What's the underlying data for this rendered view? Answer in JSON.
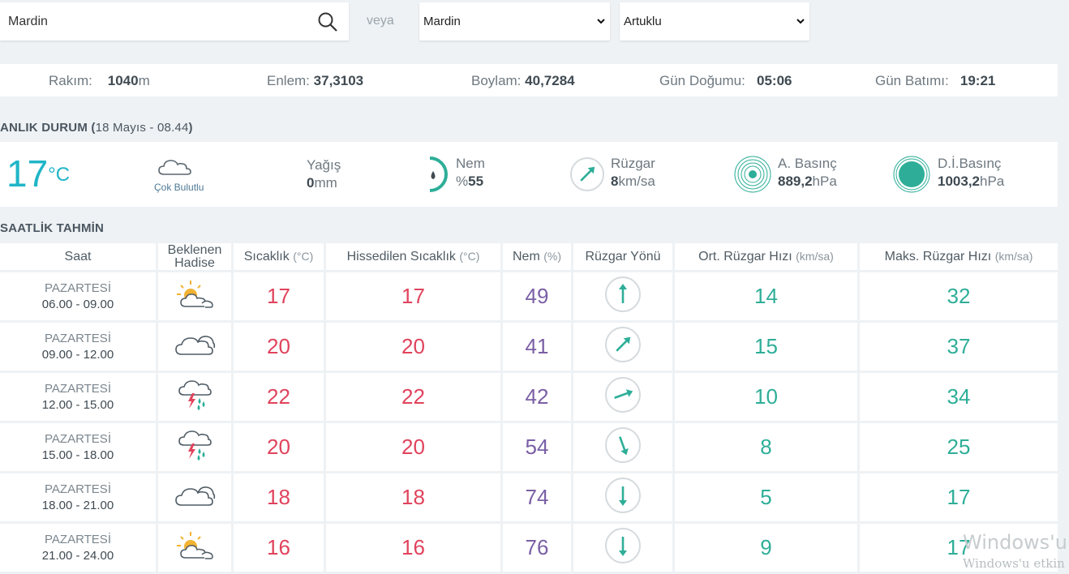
{
  "search": {
    "value": "Mardin",
    "icon": "search-icon"
  },
  "veya": "veya",
  "selects": {
    "province": "Mardin",
    "district": "Artuklu"
  },
  "info": {
    "altitude_label": "Rakım:",
    "altitude_value": "1040",
    "altitude_unit": "m",
    "lat_label": "Enlem:",
    "lat_value": "37,3103",
    "lon_label": "Boylam:",
    "lon_value": "40,7284",
    "sunrise_label": "Gün Doğumu:",
    "sunrise_value": "05:06",
    "sunset_label": "Gün Batımı:",
    "sunset_value": "19:21"
  },
  "current": {
    "title": "ANLIK DURUM (",
    "date": "18 Mayıs - 08.44",
    "title_close": ")",
    "temp": "17",
    "temp_unit": "°C",
    "condition": "Çok Bulutlu",
    "precip_label": "Yağış",
    "precip_value": "0",
    "precip_unit": "mm",
    "humidity_label": "Nem",
    "humidity_prefix": "%",
    "humidity_value": "55",
    "wind_label": "Rüzgar",
    "wind_value": "8",
    "wind_unit": "km/sa",
    "pressure_label": "A. Basınç",
    "pressure_value": "889,2",
    "pressure_unit": "hPa",
    "sealevel_label": "D.İ.Basınç",
    "sealevel_value": "1003,2",
    "sealevel_unit": "hPa"
  },
  "hourly": {
    "title": "SAATLİK TAHMİN",
    "headers": {
      "time": "Saat",
      "event1": "Beklenen",
      "event2": "Hadise",
      "temp": "Sıcaklık",
      "temp_u": "(°C)",
      "feels": "Hissedilen Sıcaklık",
      "feels_u": "(°C)",
      "hum": "Nem",
      "hum_u": "(%)",
      "dir": "Rüzgar Yönü",
      "avg": "Ort. Rüzgar Hızı",
      "avg_u": "(km/sa)",
      "max": "Maks. Rüzgar Hızı",
      "max_u": "(km/sa)"
    },
    "rows": [
      {
        "day": "PAZARTESİ",
        "time": "06.00 - 09.00",
        "icon": "partly-sunny-icon",
        "temp": "17",
        "feels": "17",
        "hum": "49",
        "dir_deg": 0,
        "avg": "14",
        "max": "32"
      },
      {
        "day": "PAZARTESİ",
        "time": "09.00 - 12.00",
        "icon": "cloudy-icon",
        "temp": "20",
        "feels": "20",
        "hum": "41",
        "dir_deg": 45,
        "avg": "15",
        "max": "37"
      },
      {
        "day": "PAZARTESİ",
        "time": "12.00 - 15.00",
        "icon": "thunderstorm-rain-icon",
        "temp": "22",
        "feels": "22",
        "hum": "42",
        "dir_deg": 70,
        "avg": "10",
        "max": "34"
      },
      {
        "day": "PAZARTESİ",
        "time": "15.00 - 18.00",
        "icon": "thunderstorm-rain-icon",
        "temp": "20",
        "feels": "20",
        "hum": "54",
        "dir_deg": 160,
        "avg": "8",
        "max": "25"
      },
      {
        "day": "PAZARTESİ",
        "time": "18.00 - 21.00",
        "icon": "cloudy-icon",
        "temp": "18",
        "feels": "18",
        "hum": "74",
        "dir_deg": 180,
        "avg": "5",
        "max": "17"
      },
      {
        "day": "PAZARTESİ",
        "time": "21.00 - 24.00",
        "icon": "partly-sunny-icon",
        "temp": "16",
        "feels": "16",
        "hum": "76",
        "dir_deg": 180,
        "avg": "9",
        "max": "17"
      }
    ]
  },
  "watermark": {
    "line1": "Windows'u",
    "line2": "Windows'u etkin"
  },
  "colors": {
    "teal": "#1fb5c7",
    "red": "#e0435c",
    "purple": "#7a5fa5",
    "green": "#2eae98"
  }
}
